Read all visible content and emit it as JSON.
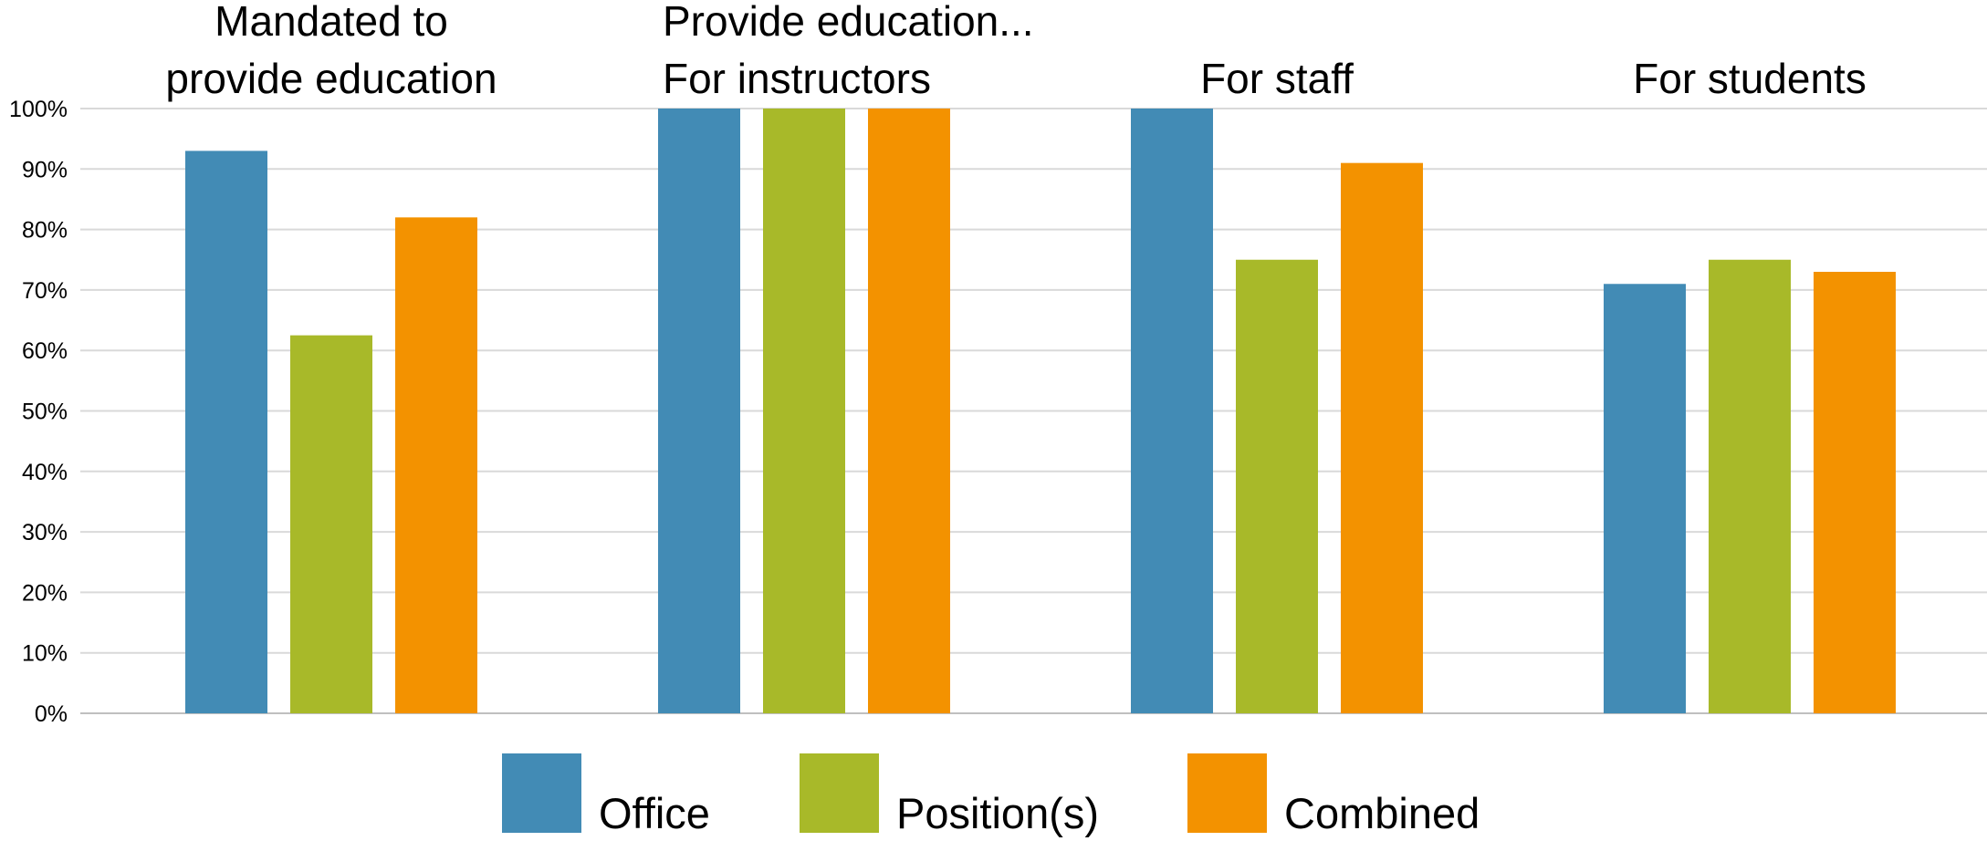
{
  "chart_data": {
    "type": "bar",
    "categories": [
      [
        "Mandated to",
        "provide education"
      ],
      [
        "Provide education...",
        "For instructors"
      ],
      [
        "For staff"
      ],
      [
        "For students"
      ]
    ],
    "series": [
      {
        "name": "Office",
        "color": "#428BB5",
        "values": [
          93,
          100,
          100,
          71
        ]
      },
      {
        "name": "Position(s)",
        "color": "#A8B929",
        "values": [
          62.5,
          100,
          75,
          75
        ]
      },
      {
        "name": "Combined",
        "color": "#F39200",
        "values": [
          82,
          100,
          91,
          73
        ]
      }
    ],
    "ylim": [
      0,
      100
    ],
    "yticks": [
      "0%",
      "10%",
      "20%",
      "30%",
      "40%",
      "50%",
      "60%",
      "70%",
      "80%",
      "90%",
      "100%"
    ],
    "grid": true,
    "legend_position": "bottom"
  }
}
